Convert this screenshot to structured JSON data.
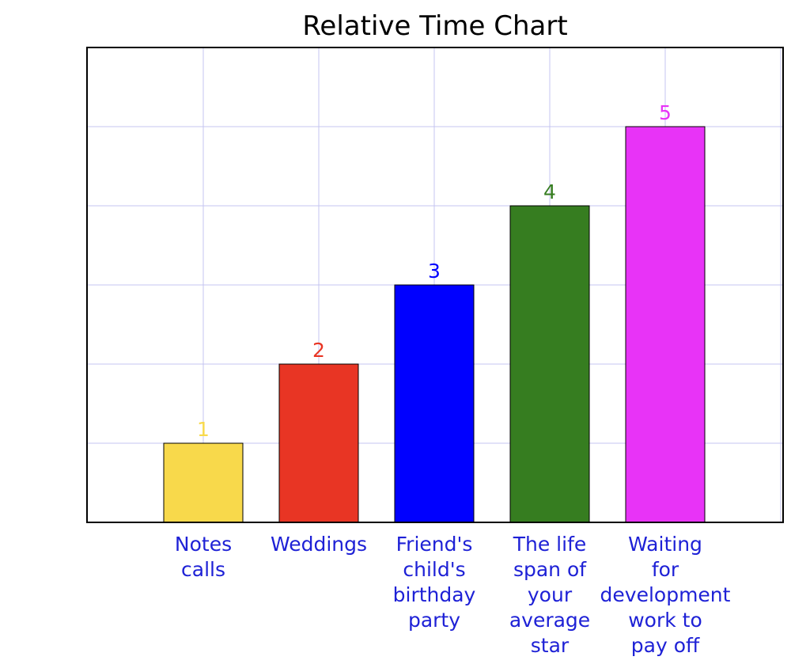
{
  "chart_data": {
    "type": "bar",
    "title": "Relative Time Chart",
    "xlabel": "",
    "ylabel": "",
    "categories": [
      "Notes calls",
      "Weddings",
      "Friend's child's birthday party",
      "The life span of your average star",
      "Waiting for development work to pay off"
    ],
    "category_lines": [
      [
        "Notes",
        "calls"
      ],
      [
        "Weddings"
      ],
      [
        "Friend's",
        "child's",
        "birthday",
        "party"
      ],
      [
        "The life",
        "span of",
        "your",
        "average",
        "star"
      ],
      [
        "Waiting",
        "for",
        "development",
        "work to",
        "pay off"
      ]
    ],
    "values": [
      1,
      2,
      3,
      4,
      5
    ],
    "data_labels": [
      "1",
      "2",
      "3",
      "4",
      "5"
    ],
    "colors": [
      "#f8d94b",
      "#e83524",
      "#0000ff",
      "#367d20",
      "#e833f7"
    ],
    "label_color": "#1e21d6",
    "gridline_color": "#c4c4f0",
    "ylim": [
      0,
      6
    ],
    "grid": true,
    "legend": "none"
  }
}
